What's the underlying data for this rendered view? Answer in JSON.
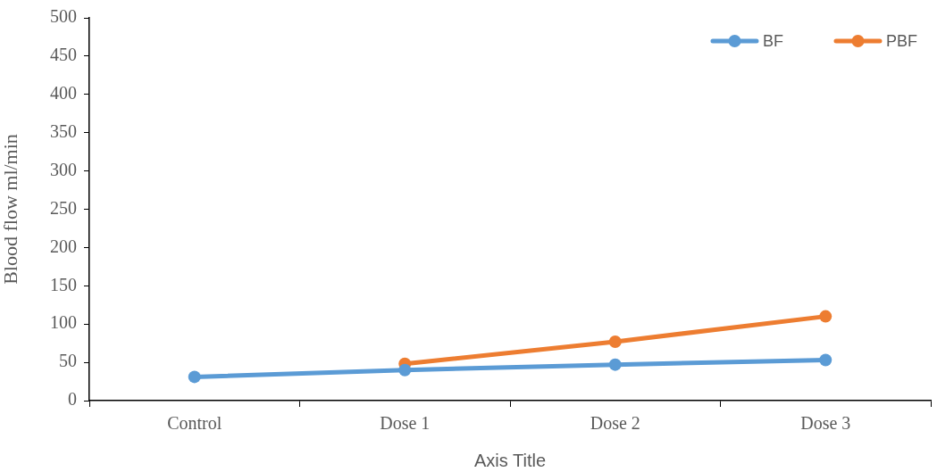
{
  "chart_data": {
    "type": "line",
    "ylabel": "Blood flow ml/min",
    "xlabel": "Axis Title",
    "categories": [
      "Control",
      "Dose 1",
      "Dose 2",
      "Dose 3"
    ],
    "series": [
      {
        "name": "BF",
        "color": "#5b9bd5",
        "values": [
          31,
          40,
          47,
          53
        ]
      },
      {
        "name": "PBF",
        "color": "#ed7d31",
        "values": [
          null,
          48,
          77,
          110
        ]
      }
    ],
    "ylim": [
      0,
      500
    ],
    "yticks": [
      0,
      50,
      100,
      150,
      200,
      250,
      300,
      350,
      400,
      450,
      500
    ],
    "legend": "top right",
    "marker": "circle",
    "line_style": "solid"
  }
}
